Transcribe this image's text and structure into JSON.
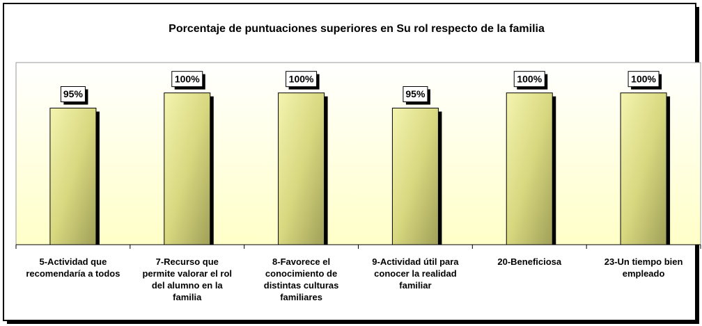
{
  "chart_data": {
    "type": "bar",
    "title": "Porcentaje de puntuaciones superiores en Su rol respecto de la familia",
    "categories": [
      "5-Actividad que recomendaría a todos",
      "7-Recurso que permite valorar el rol del alumno en la familia",
      "8-Favorece el conocimiento de distintas culturas familiares",
      "9-Actividad útil para conocer la realidad familiar",
      "20-Beneficiosa",
      "23-Un tiempo bien empleado"
    ],
    "values": [
      95,
      100,
      100,
      95,
      100,
      100
    ],
    "value_labels": [
      "95%",
      "100%",
      "100%",
      "95%",
      "100%",
      "100%"
    ],
    "color": "#d8d880",
    "ylim": [
      50,
      110
    ]
  }
}
